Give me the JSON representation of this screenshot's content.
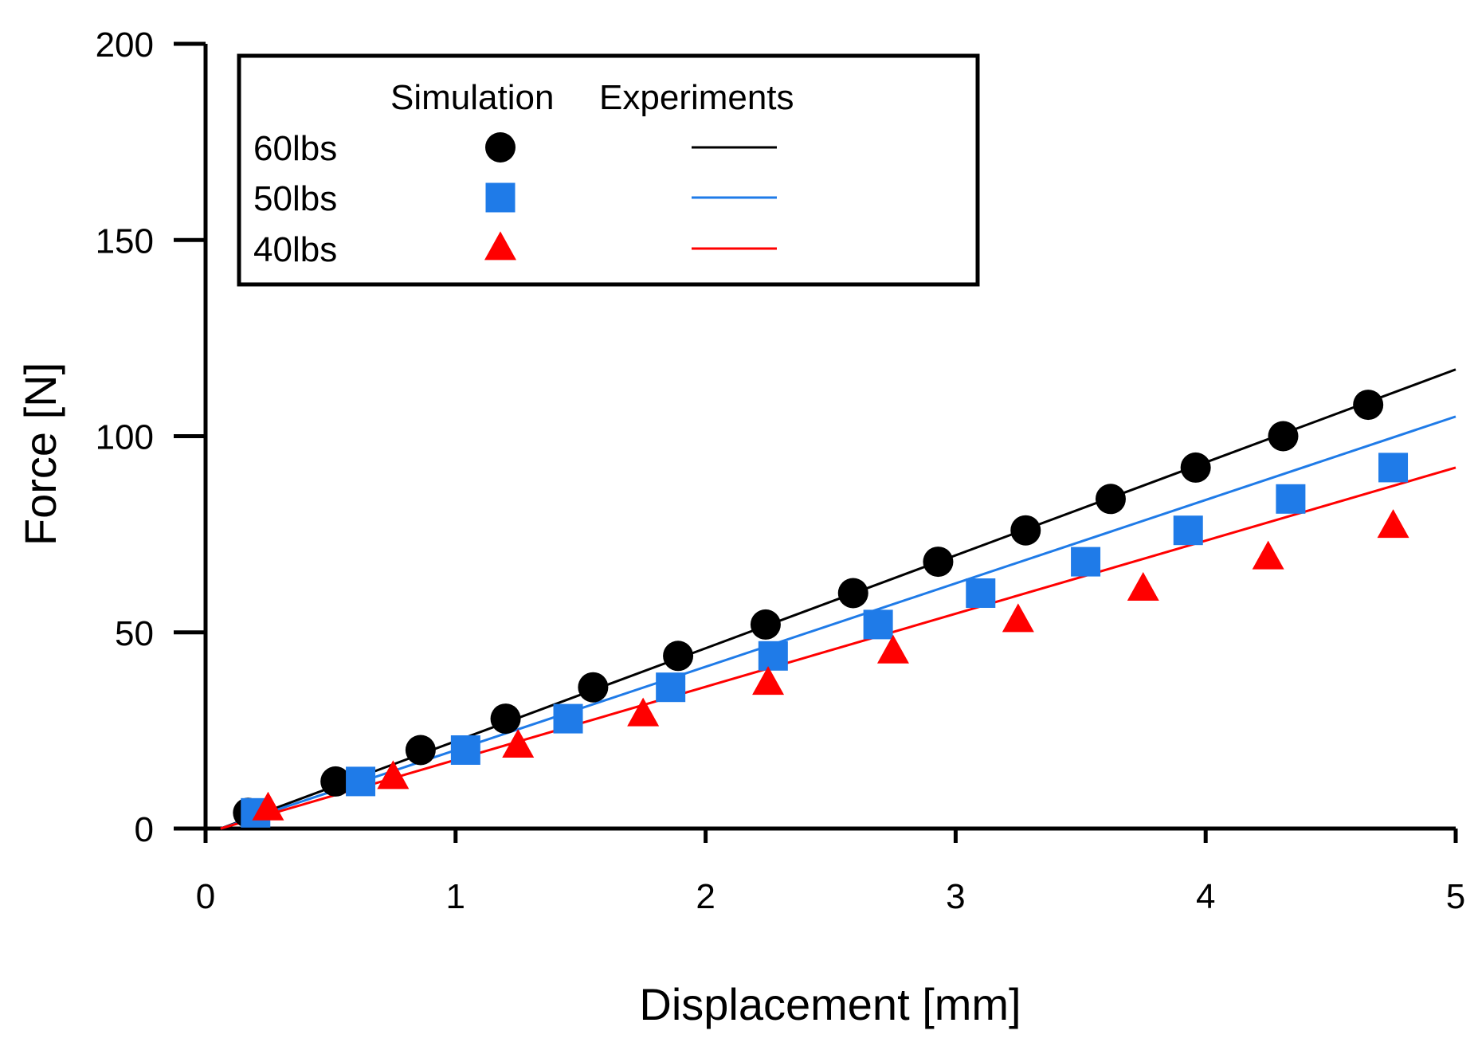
{
  "chart_data": {
    "type": "scatter",
    "title": "",
    "xlabel": "Displacement [mm]",
    "ylabel": "Force [N]",
    "xlim": [
      0,
      5
    ],
    "ylim": [
      0,
      200
    ],
    "xticks": [
      "0",
      "1",
      "2",
      "3",
      "4",
      "5"
    ],
    "yticks": [
      "0",
      "50",
      "100",
      "150",
      "200"
    ],
    "grid": false,
    "legend": {
      "placement": "top-left",
      "col_simulation": "Simulation",
      "col_experiments": "Experiments"
    },
    "series": [
      {
        "name": "60lbs",
        "color": "#000000",
        "marker": "circle",
        "simulation": {
          "x": [
            0.17,
            0.52,
            0.86,
            1.2,
            1.55,
            1.89,
            2.24,
            2.59,
            2.93,
            3.28,
            3.62,
            3.96,
            4.31,
            4.65
          ],
          "y": [
            4,
            12,
            20,
            28,
            36,
            44,
            52,
            60,
            68,
            76,
            84,
            92,
            100,
            108
          ]
        },
        "experiment_line": {
          "x": [
            0.06,
            5.0
          ],
          "y": [
            0,
            117
          ]
        }
      },
      {
        "name": "50lbs",
        "color": "#1F7BE8",
        "marker": "square",
        "simulation": {
          "x": [
            0.2,
            0.62,
            1.04,
            1.45,
            1.86,
            2.27,
            2.69,
            3.1,
            3.52,
            3.93,
            4.34,
            4.75
          ],
          "y": [
            4,
            12,
            20,
            28,
            36,
            44,
            52,
            60,
            68,
            76,
            84,
            92
          ]
        },
        "experiment_line": {
          "x": [
            0.06,
            5.0
          ],
          "y": [
            0,
            105
          ]
        }
      },
      {
        "name": "40lbs",
        "color": "#FF0000",
        "marker": "triangle",
        "simulation": {
          "x": [
            0.25,
            0.75,
            1.25,
            1.75,
            2.25,
            2.75,
            3.25,
            3.75,
            4.25,
            4.75
          ],
          "y": [
            5,
            13,
            21,
            29,
            37,
            45,
            53,
            61,
            69,
            77
          ]
        },
        "experiment_line": {
          "x": [
            0.06,
            5.0
          ],
          "y": [
            0,
            92
          ]
        }
      }
    ]
  }
}
